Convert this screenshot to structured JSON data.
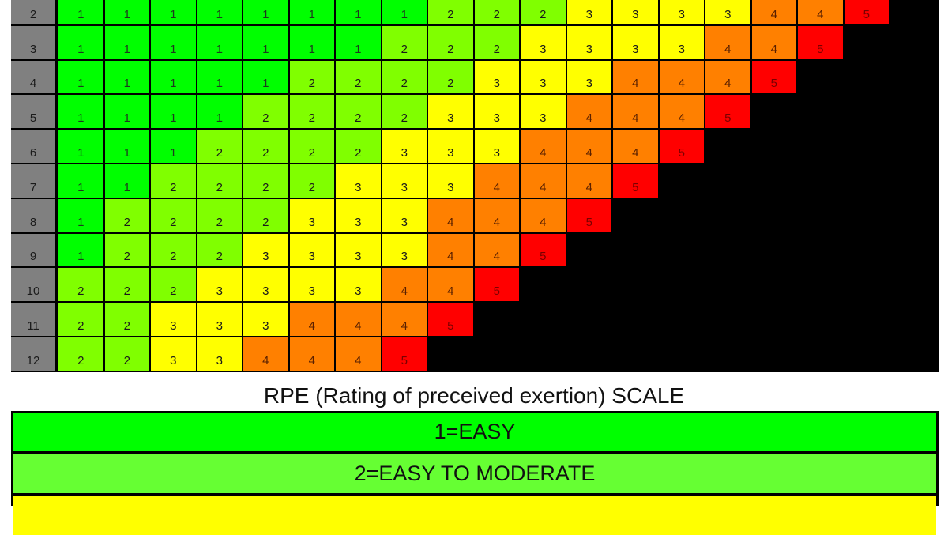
{
  "chart_data": {
    "type": "heatmap",
    "title": "RPE (Rating of preceived exertion) SCALE",
    "row_labels": [
      "2",
      "3",
      "4",
      "5",
      "6",
      "7",
      "8",
      "9",
      "10",
      "11",
      "12"
    ],
    "column_count": 18,
    "rows": [
      {
        "label": "2",
        "values": [
          1,
          1,
          1,
          1,
          1,
          1,
          1,
          1,
          2,
          2,
          2,
          3,
          3,
          3,
          3,
          4,
          4,
          5
        ]
      },
      {
        "label": "3",
        "values": [
          1,
          1,
          1,
          1,
          1,
          1,
          1,
          2,
          2,
          2,
          3,
          3,
          3,
          3,
          4,
          4,
          5
        ]
      },
      {
        "label": "4",
        "values": [
          1,
          1,
          1,
          1,
          1,
          2,
          2,
          2,
          2,
          3,
          3,
          3,
          4,
          4,
          4,
          5
        ]
      },
      {
        "label": "5",
        "values": [
          1,
          1,
          1,
          1,
          2,
          2,
          2,
          2,
          3,
          3,
          3,
          4,
          4,
          4,
          5
        ]
      },
      {
        "label": "6",
        "values": [
          1,
          1,
          1,
          2,
          2,
          2,
          2,
          3,
          3,
          3,
          4,
          4,
          4,
          5
        ]
      },
      {
        "label": "7",
        "values": [
          1,
          1,
          2,
          2,
          2,
          2,
          3,
          3,
          3,
          4,
          4,
          4,
          5
        ]
      },
      {
        "label": "8",
        "values": [
          1,
          2,
          2,
          2,
          2,
          3,
          3,
          3,
          4,
          4,
          4,
          5
        ]
      },
      {
        "label": "9",
        "values": [
          1,
          2,
          2,
          2,
          3,
          3,
          3,
          3,
          4,
          4,
          5
        ]
      },
      {
        "label": "10",
        "values": [
          2,
          2,
          2,
          3,
          3,
          3,
          3,
          4,
          4,
          5
        ]
      },
      {
        "label": "11",
        "values": [
          2,
          2,
          3,
          3,
          3,
          4,
          4,
          4,
          5
        ]
      },
      {
        "label": "12",
        "values": [
          2,
          2,
          3,
          3,
          4,
          4,
          4,
          5
        ]
      }
    ],
    "color_scale": {
      "1": "#00ff00",
      "2": "#80ff00",
      "3": "#ffff00",
      "4": "#ff8000",
      "5": "#ff0000"
    },
    "empty_color": "#000000",
    "row_label_color": "#808080"
  },
  "title": "RPE (Rating of preceived exertion) SCALE",
  "legend": [
    {
      "label": "1=EASY",
      "color": "#00ff00"
    },
    {
      "label": "2=EASY TO MODERATE",
      "color": "#66ff33"
    },
    {
      "label": "",
      "color": "#ffff00"
    }
  ]
}
